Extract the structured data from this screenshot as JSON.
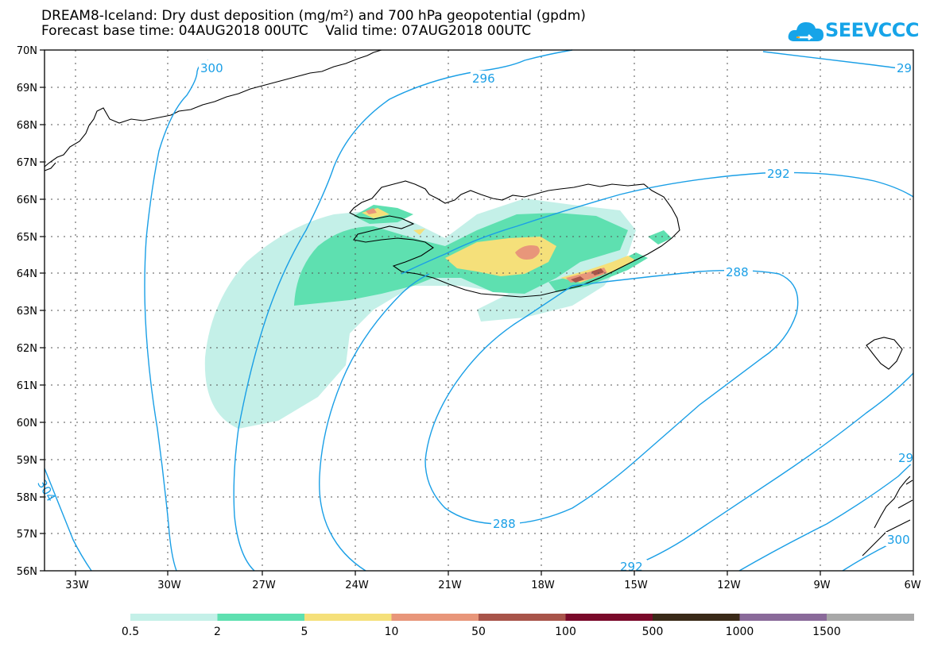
{
  "header": {
    "title_line1": "DREAM8-Iceland: Dry dust deposition (mg/m²) and 700 hPa geopotential (gpdm)",
    "title_line2": "Forecast base time: 04AUG2018 00UTC    Valid time: 07AUG2018 00UTC"
  },
  "logo": {
    "text": "SEEVCCC",
    "icon": "cloud-icon",
    "color": "#16a4e8"
  },
  "map": {
    "lat_labels": [
      "70N",
      "69N",
      "68N",
      "67N",
      "66N",
      "65N",
      "64N",
      "63N",
      "62N",
      "61N",
      "60N",
      "59N",
      "58N",
      "57N",
      "56N"
    ],
    "lon_labels": [
      "33W",
      "30W",
      "27W",
      "24W",
      "21W",
      "18W",
      "15W",
      "12W",
      "9W",
      "6W"
    ],
    "contour_color": "#1a9fe6",
    "contour_labels": [
      "300",
      "296",
      "292",
      "288",
      "288",
      "292",
      "29",
      "29",
      "304",
      "300"
    ]
  },
  "legend": {
    "colors": [
      "#c4f0e8",
      "#5ee0b0",
      "#f5e07a",
      "#e8967a",
      "#a8544a",
      "#7a0a2a",
      "#3a2a18",
      "#8a6a9a",
      "#a8a8a8"
    ],
    "labels": [
      "0.5",
      "2",
      "5",
      "10",
      "50",
      "100",
      "500",
      "1000",
      "1500"
    ]
  }
}
